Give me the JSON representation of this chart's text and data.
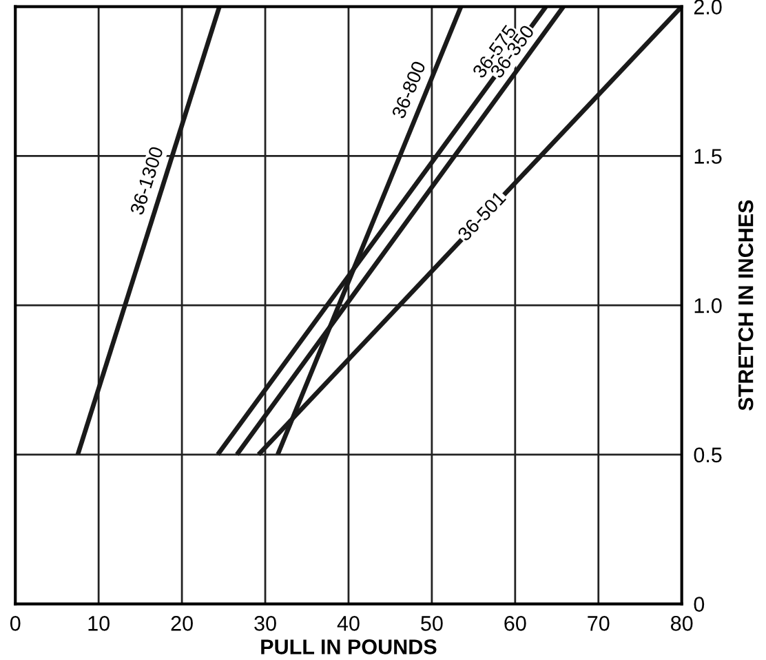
{
  "chart_data": {
    "type": "line",
    "xlabel": "PULL IN POUNDS",
    "ylabel": "STRETCH IN INCHES",
    "series": [
      {
        "name": "36-1300",
        "color": "#1a1a1a",
        "x": [
          7.5,
          24.5
        ],
        "values": [
          0.5,
          2.0
        ]
      },
      {
        "name": "36-800",
        "color": "#1a1a1a",
        "x": [
          31.5,
          53.5
        ],
        "values": [
          0.5,
          2.0
        ]
      },
      {
        "name": "36-575",
        "color": "#1a1a1a",
        "x": [
          24.3,
          63.7
        ],
        "values": [
          0.5,
          2.0
        ]
      },
      {
        "name": "36-350",
        "color": "#1a1a1a",
        "x": [
          26.6,
          65.8
        ],
        "values": [
          0.5,
          2.0
        ]
      },
      {
        "name": "36-501",
        "color": "#1a1a1a",
        "x": [
          29.2,
          80
        ],
        "values": [
          0.5,
          2.0
        ]
      }
    ],
    "xlim": [
      0,
      80
    ],
    "xticks": [
      0,
      10,
      20,
      30,
      40,
      50,
      60,
      70,
      80
    ],
    "ylim": [
      0,
      2.0
    ],
    "yticks": [
      {
        "value": 0,
        "label": "0"
      },
      {
        "value": 0.5,
        "label": "0.5"
      },
      {
        "value": 1.0,
        "label": "1.0"
      },
      {
        "value": 1.5,
        "label": "1.5"
      },
      {
        "value": 2.0,
        "label": "2.0"
      }
    ],
    "grid": true,
    "legend": false,
    "marker": "none",
    "line_style": "solid"
  }
}
